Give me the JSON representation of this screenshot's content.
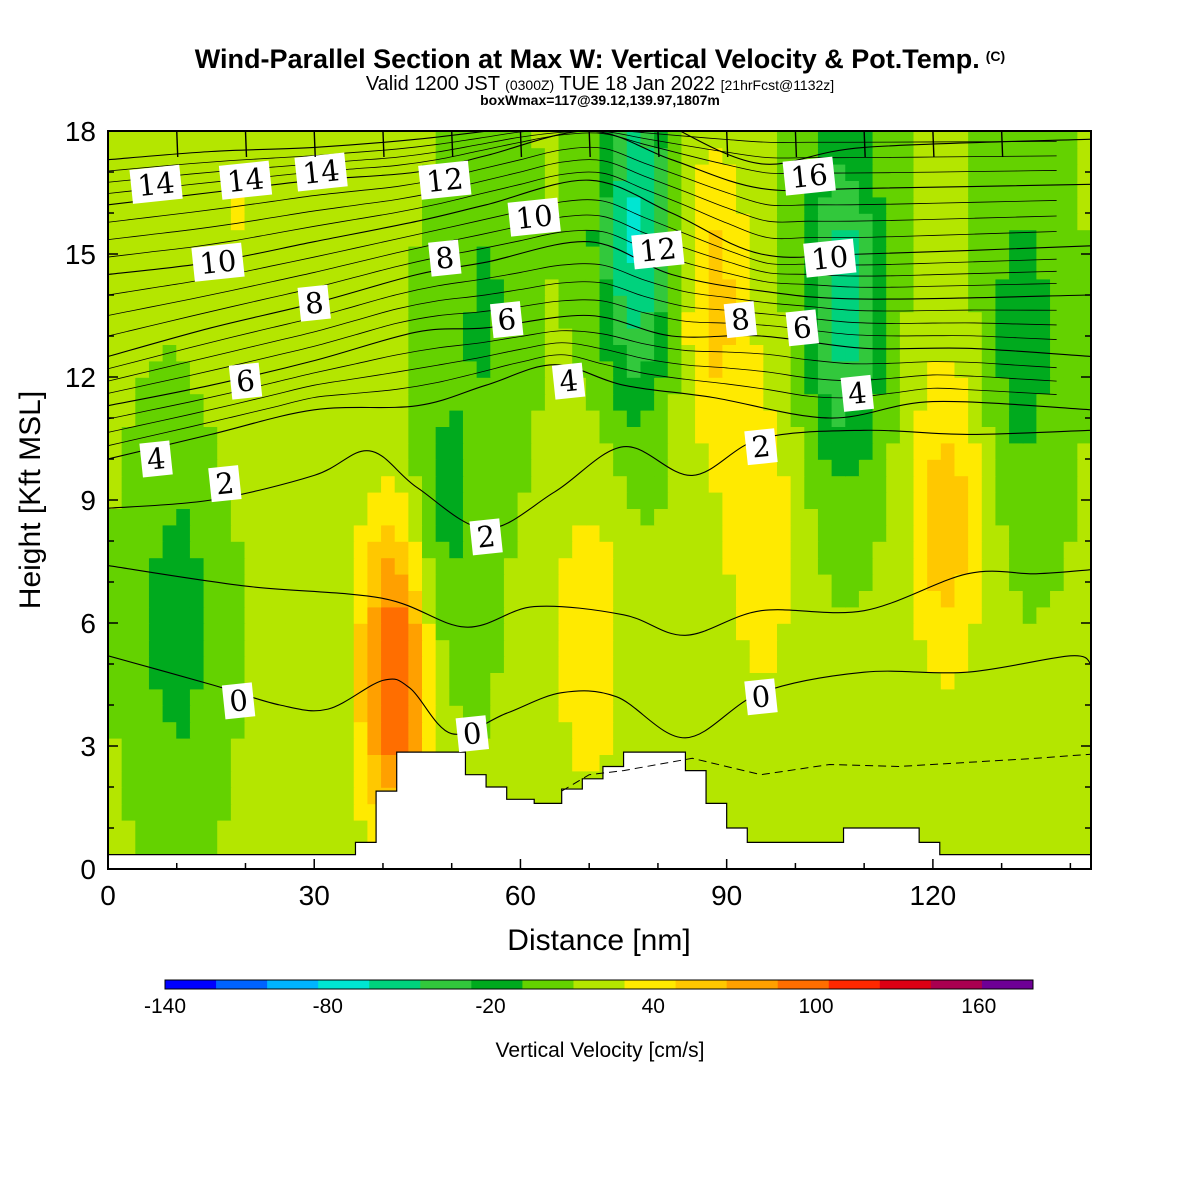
{
  "header": {
    "title": "Wind-Parallel Section at Max W: Vertical Velocity & Pot.Temp.",
    "copyright": "(C)",
    "valid_prefix": "Valid 1200 JST",
    "valid_utc": "(0300Z)",
    "valid_date": "TUE 18 Jan 2022",
    "forecast_info": "[21hrFcst@1132z]",
    "box_info": "boxWmax=117@39.12,139.97,1807m"
  },
  "chart_data": {
    "type": "heatmap",
    "xlabel": "Distance [nm]",
    "ylabel": "Height [Kft MSL]",
    "xlim": [
      0,
      143
    ],
    "ylim": [
      0,
      18
    ],
    "x_ticks": [
      0,
      30,
      60,
      90,
      120
    ],
    "y_ticks": [
      0,
      3,
      6,
      9,
      12,
      15,
      18
    ],
    "colorbar": {
      "title": "Vertical Velocity [cm/s]",
      "range": [
        -140,
        180
      ],
      "tick_values": [
        -140,
        -80,
        -20,
        40,
        100,
        160
      ],
      "colors": [
        "#0000ff",
        "#0063ff",
        "#00b4ff",
        "#00e6d2",
        "#00d27d",
        "#32c83c",
        "#00aa1e",
        "#64d200",
        "#b4e600",
        "#ffea00",
        "#ffc800",
        "#ffa000",
        "#ff6e00",
        "#ff2800",
        "#dc0014",
        "#aa0050",
        "#6e0096"
      ]
    },
    "velocity_features": [
      {
        "x": 42,
        "y": 4.8,
        "value": 110
      },
      {
        "x": 48,
        "y": 8,
        "value": -20
      },
      {
        "x": 55,
        "y": 14,
        "value": -10
      },
      {
        "x": 70,
        "y": 5.5,
        "value": 45
      },
      {
        "x": 77,
        "y": 15.5,
        "value": -70
      },
      {
        "x": 88,
        "y": 14,
        "value": 55
      },
      {
        "x": 95,
        "y": 8,
        "value": 45
      },
      {
        "x": 107,
        "y": 14,
        "value": -60
      },
      {
        "x": 122,
        "y": 8.5,
        "value": 60
      },
      {
        "x": 133,
        "y": 13,
        "value": -20
      },
      {
        "x": 18,
        "y": 16,
        "value": 30
      },
      {
        "x": 10,
        "y": 6,
        "value": -20
      }
    ],
    "theta_contours": [
      {
        "label": "0",
        "pts": [
          [
            0,
            5.2
          ],
          [
            15,
            4.5
          ],
          [
            25,
            4.0
          ],
          [
            32,
            3.9
          ],
          [
            40,
            4.6
          ],
          [
            44,
            4.4
          ],
          [
            50,
            3.3
          ],
          [
            58,
            3.8
          ],
          [
            66,
            4.3
          ],
          [
            74,
            4.2
          ],
          [
            84,
            3.2
          ],
          [
            95,
            4.3
          ],
          [
            110,
            4.8
          ],
          [
            125,
            4.8
          ],
          [
            140,
            5.2
          ],
          [
            143,
            5.0
          ]
        ],
        "labels_at": [
          [
            19,
            4.1
          ],
          [
            53,
            3.3
          ],
          [
            95,
            4.2
          ]
        ]
      },
      {
        "label": "",
        "pts": [
          [
            0,
            7.4
          ],
          [
            20,
            6.9
          ],
          [
            40,
            6.6
          ],
          [
            52,
            5.9
          ],
          [
            62,
            6.4
          ],
          [
            75,
            6.2
          ],
          [
            84,
            5.7
          ],
          [
            95,
            6.3
          ],
          [
            110,
            6.3
          ],
          [
            125,
            7.2
          ],
          [
            135,
            7.2
          ],
          [
            143,
            7.3
          ]
        ]
      },
      {
        "label": "2",
        "pts": [
          [
            0,
            8.8
          ],
          [
            15,
            9.0
          ],
          [
            30,
            9.6
          ],
          [
            38,
            10.2
          ],
          [
            45,
            9.3
          ],
          [
            55,
            8.3
          ],
          [
            65,
            9.2
          ],
          [
            75,
            10.3
          ],
          [
            85,
            9.6
          ],
          [
            95,
            10.5
          ],
          [
            110,
            10.7
          ],
          [
            125,
            10.6
          ],
          [
            143,
            10.7
          ]
        ],
        "labels_at": [
          [
            17,
            9.4
          ],
          [
            55,
            8.1
          ],
          [
            95,
            10.3
          ]
        ]
      },
      {
        "label": "4",
        "pts": [
          [
            0,
            10.0
          ],
          [
            15,
            10.6
          ],
          [
            30,
            11.2
          ],
          [
            45,
            11.3
          ],
          [
            55,
            11.8
          ],
          [
            65,
            12.3
          ],
          [
            75,
            11.8
          ],
          [
            88,
            11.5
          ],
          [
            105,
            11.0
          ],
          [
            120,
            11.4
          ],
          [
            143,
            11.2
          ]
        ],
        "labels_at": [
          [
            7,
            10.0
          ],
          [
            67,
            11.9
          ],
          [
            109,
            11.6
          ]
        ]
      },
      {
        "label": "6",
        "pts": [
          [
            0,
            11.3
          ],
          [
            15,
            11.8
          ],
          [
            30,
            12.4
          ],
          [
            45,
            13.1
          ],
          [
            55,
            13.2
          ],
          [
            70,
            13.5
          ],
          [
            82,
            13.0
          ],
          [
            95,
            13.0
          ],
          [
            110,
            12.7
          ],
          [
            125,
            12.7
          ],
          [
            143,
            12.5
          ]
        ],
        "labels_at": [
          [
            20,
            11.9
          ],
          [
            58,
            13.4
          ],
          [
            101,
            13.2
          ]
        ]
      },
      {
        "label": "8",
        "pts": [
          [
            0,
            12.5
          ],
          [
            15,
            13.2
          ],
          [
            30,
            13.8
          ],
          [
            45,
            14.5
          ],
          [
            55,
            14.8
          ],
          [
            70,
            15.3
          ],
          [
            82,
            14.5
          ],
          [
            95,
            14.1
          ],
          [
            110,
            13.9
          ],
          [
            143,
            14.0
          ]
        ],
        "labels_at": [
          [
            30,
            13.8
          ],
          [
            49,
            14.9
          ],
          [
            92,
            13.4
          ]
        ]
      },
      {
        "label": "10",
        "pts": [
          [
            0,
            14.5
          ],
          [
            15,
            14.8
          ],
          [
            30,
            15.3
          ],
          [
            45,
            15.8
          ],
          [
            55,
            16.2
          ],
          [
            70,
            16.8
          ],
          [
            82,
            16.0
          ],
          [
            95,
            15.0
          ],
          [
            110,
            15.0
          ],
          [
            143,
            15.2
          ]
        ],
        "labels_at": [
          [
            16,
            14.8
          ],
          [
            62,
            15.9
          ],
          [
            105,
            14.9
          ]
        ]
      },
      {
        "label": "12",
        "pts": [
          [
            0,
            16.2
          ],
          [
            15,
            16.5
          ],
          [
            30,
            16.8
          ],
          [
            45,
            17.0
          ],
          [
            55,
            17.4
          ],
          [
            70,
            18.0
          ],
          [
            82,
            17.3
          ],
          [
            95,
            16.6
          ],
          [
            110,
            16.6
          ],
          [
            143,
            16.7
          ]
        ],
        "labels_at": [
          [
            49,
            16.8
          ],
          [
            80,
            15.1
          ]
        ]
      },
      {
        "label": "14",
        "pts": [
          [
            0,
            17.3
          ],
          [
            15,
            17.5
          ],
          [
            30,
            17.6
          ],
          [
            45,
            17.8
          ],
          [
            60,
            18.1
          ]
        ],
        "labels_at": [
          [
            7,
            16.7
          ],
          [
            20,
            16.8
          ],
          [
            31,
            17.0
          ]
        ]
      },
      {
        "label": "16",
        "pts": [
          [
            82,
            18.1
          ],
          [
            95,
            17.2
          ],
          [
            110,
            17.6
          ],
          [
            143,
            17.8
          ]
        ],
        "labels_at": [
          [
            102,
            16.9
          ]
        ]
      }
    ],
    "wind_barb_ticks_x": [
      10,
      20,
      30,
      40,
      50,
      60,
      70,
      80,
      90,
      100,
      110,
      120,
      130
    ],
    "terrain": [
      [
        0,
        0.35
      ],
      [
        36,
        0.35
      ],
      [
        36,
        0.65
      ],
      [
        39,
        0.65
      ],
      [
        39,
        1.9
      ],
      [
        42,
        1.9
      ],
      [
        42,
        2.85
      ],
      [
        52,
        2.85
      ],
      [
        52,
        2.3
      ],
      [
        55,
        2.3
      ],
      [
        55,
        2.0
      ],
      [
        58,
        2.0
      ],
      [
        58,
        1.7
      ],
      [
        62,
        1.7
      ],
      [
        62,
        1.6
      ],
      [
        66,
        1.6
      ],
      [
        66,
        1.95
      ],
      [
        69,
        1.95
      ],
      [
        69,
        2.2
      ],
      [
        72,
        2.2
      ],
      [
        72,
        2.5
      ],
      [
        75,
        2.5
      ],
      [
        75,
        2.85
      ],
      [
        84,
        2.85
      ],
      [
        84,
        2.4
      ],
      [
        87,
        2.4
      ],
      [
        87,
        1.6
      ],
      [
        90,
        1.6
      ],
      [
        90,
        1.0
      ],
      [
        93,
        1.0
      ],
      [
        93,
        0.65
      ],
      [
        107,
        0.65
      ],
      [
        107,
        1.0
      ],
      [
        118,
        1.0
      ],
      [
        118,
        0.65
      ],
      [
        121,
        0.65
      ],
      [
        121,
        0.35
      ],
      [
        143,
        0.35
      ]
    ],
    "dashed_line": [
      [
        66,
        1.9
      ],
      [
        70,
        2.3
      ],
      [
        75,
        2.4
      ],
      [
        85,
        2.7
      ],
      [
        95,
        2.3
      ],
      [
        105,
        2.55
      ],
      [
        115,
        2.5
      ],
      [
        125,
        2.6
      ],
      [
        135,
        2.7
      ],
      [
        143,
        2.8
      ]
    ]
  }
}
